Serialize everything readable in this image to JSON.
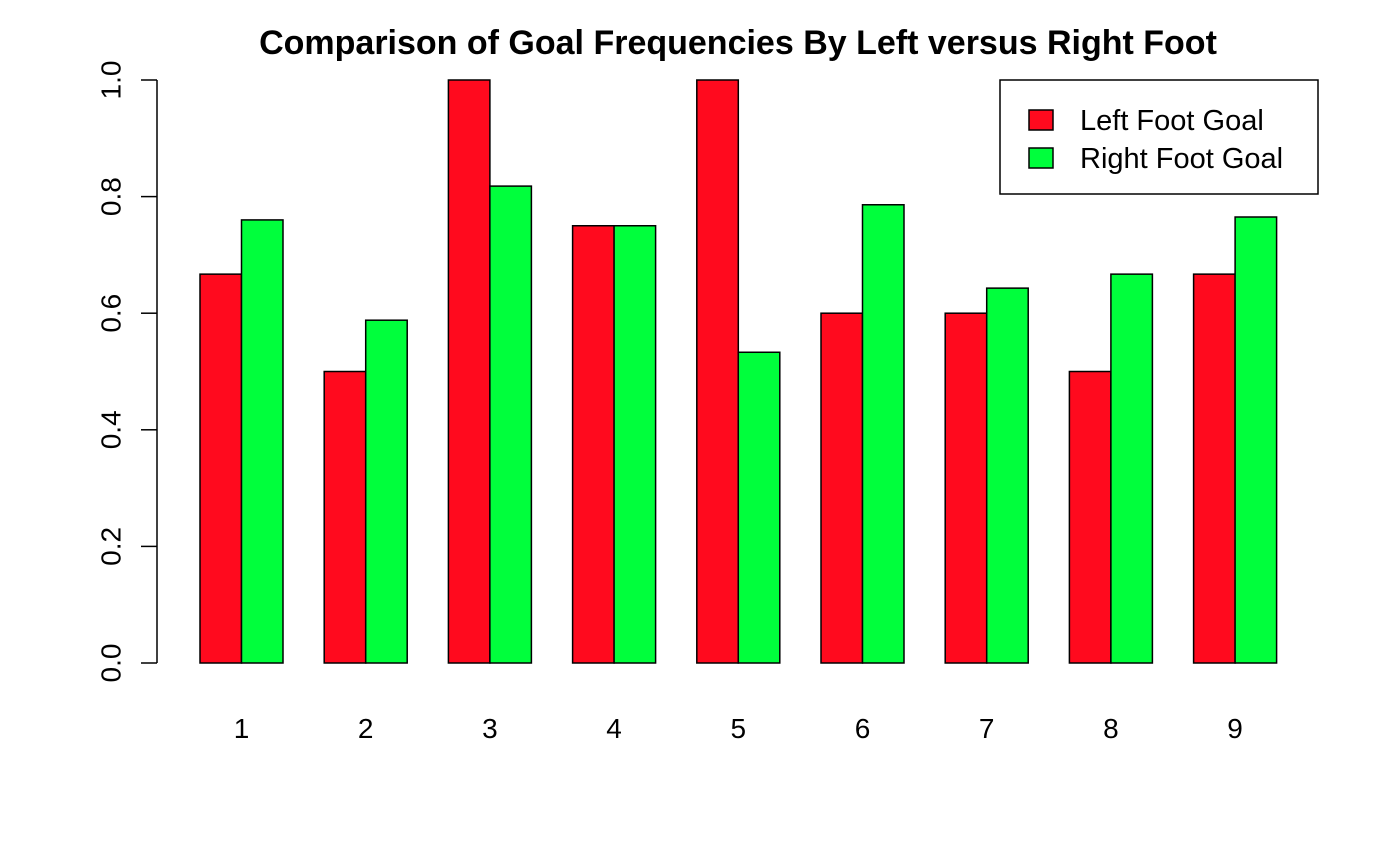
{
  "chart_data": {
    "type": "bar",
    "title": "Comparison of Goal Frequencies By Left versus Right Foot",
    "xlabel": "",
    "ylabel": "",
    "categories": [
      "1",
      "2",
      "3",
      "4",
      "5",
      "6",
      "7",
      "8",
      "9"
    ],
    "series": [
      {
        "name": "Left Foot Goal",
        "color": "#ff0a1e",
        "values": [
          0.667,
          0.5,
          1.0,
          0.75,
          1.0,
          0.6,
          0.6,
          0.5,
          0.667
        ]
      },
      {
        "name": "Right Foot Goal",
        "color": "#00ff3c",
        "values": [
          0.76,
          0.588,
          0.818,
          0.75,
          0.533,
          0.786,
          0.643,
          0.667,
          0.765
        ]
      }
    ],
    "ylim": [
      0,
      1
    ],
    "yticks": [
      "0.0",
      "0.2",
      "0.4",
      "0.6",
      "0.8",
      "1.0"
    ],
    "grid": false,
    "legend_position": "top-right"
  }
}
